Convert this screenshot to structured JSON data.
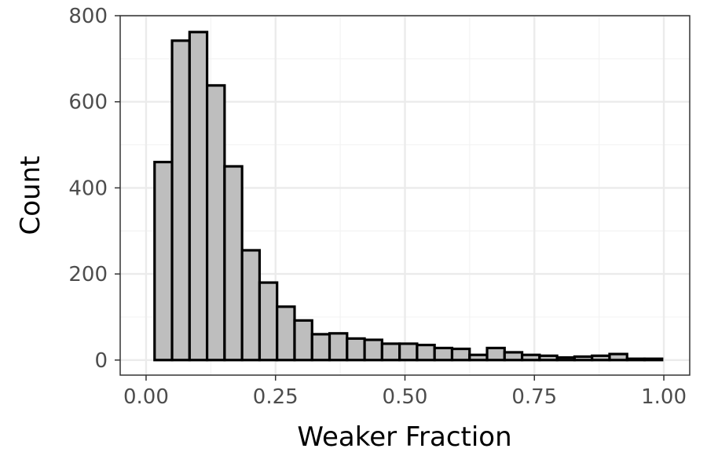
{
  "chart_data": {
    "type": "bar",
    "title": "",
    "xlabel": "Weaker Fraction",
    "ylabel": "Count",
    "xlim": [
      -0.05,
      1.05
    ],
    "ylim": [
      -35,
      800
    ],
    "x_ticks": [
      0,
      0.25,
      0.5,
      0.75,
      1
    ],
    "x_tick_labels": [
      "0.00",
      "0.25",
      "0.50",
      "0.75",
      "1.00"
    ],
    "y_ticks": [
      0,
      200,
      400,
      600,
      800
    ],
    "y_tick_labels": [
      "0",
      "200",
      "400",
      "600",
      "800"
    ],
    "grid": true,
    "legend": "none",
    "bin_width": 0.0338,
    "bin_starts": [
      0.0164,
      0.0502,
      0.084,
      0.1178,
      0.1516,
      0.1854,
      0.2192,
      0.253,
      0.2868,
      0.3206,
      0.3544,
      0.3882,
      0.422,
      0.4558,
      0.4896,
      0.5234,
      0.5572,
      0.591,
      0.6248,
      0.6586,
      0.6924,
      0.7262,
      0.76,
      0.7938,
      0.8276,
      0.8614,
      0.8952,
      0.929,
      0.9628
    ],
    "values": [
      460,
      742,
      762,
      638,
      450,
      255,
      180,
      124,
      92,
      60,
      62,
      50,
      47,
      38,
      38,
      35,
      28,
      26,
      12,
      28,
      18,
      12,
      10,
      6,
      8,
      10,
      14,
      3,
      3
    ],
    "colors": {
      "bar_fill": "#bebebe",
      "bar_stroke": "#000000",
      "grid_major": "#ebebeb",
      "grid_minor": "#f3f3f3",
      "panel_border": "#333333",
      "tick_text": "#4d4d4d",
      "title_text": "#000000"
    }
  }
}
